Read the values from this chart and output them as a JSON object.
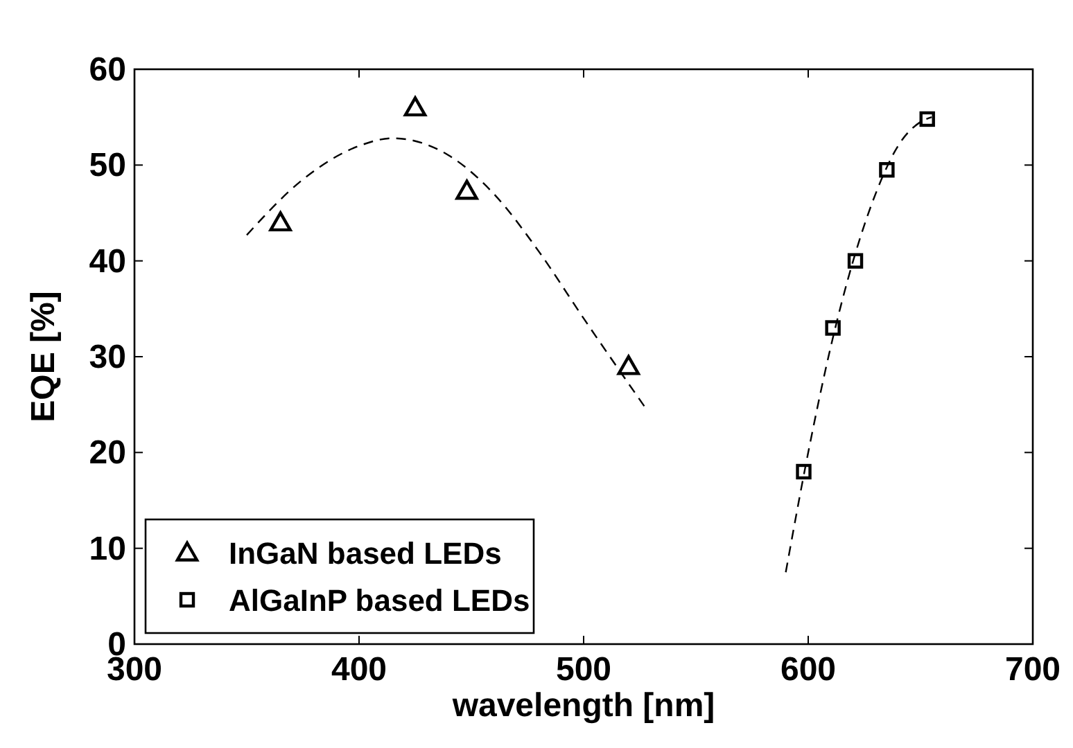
{
  "chart_data": {
    "type": "scatter",
    "xlabel": "wavelength [nm]",
    "ylabel": "EQE [%]",
    "xlim": [
      300,
      700
    ],
    "xticks": [
      300,
      400,
      500,
      600,
      700
    ],
    "ylim": [
      0,
      60
    ],
    "yticks": [
      0,
      10,
      20,
      30,
      40,
      50,
      60
    ],
    "grid": false,
    "legend": "bottom left",
    "series": [
      {
        "name": "InGaN based LEDs",
        "color": "#000000",
        "marker": "triangle",
        "x": [
          365,
          425,
          448,
          520
        ],
        "values": [
          44,
          56,
          47.3,
          29
        ]
      },
      {
        "name": "AlGaInP based LEDs",
        "color": "#000000",
        "marker": "square",
        "x": [
          598,
          611,
          621,
          635,
          653
        ],
        "values": [
          18,
          33,
          40,
          49.5,
          54.8
        ]
      },
      {
        "type": "line",
        "color": "#000000",
        "line_style": "dashed",
        "marker": "none",
        "x": [
          350,
          375,
          400,
          415,
          440,
          460,
          480,
          500,
          528
        ],
        "values": [
          42.7,
          48.5,
          52,
          52.8,
          51,
          47,
          41,
          34,
          24.5
        ]
      },
      {
        "type": "line",
        "color": "#000000",
        "line_style": "dashed",
        "marker": "none",
        "x": [
          590,
          600,
          610,
          620,
          630,
          640,
          650,
          655
        ],
        "values": [
          7.5,
          20,
          31,
          40,
          47,
          52,
          54.5,
          55
        ]
      }
    ]
  }
}
